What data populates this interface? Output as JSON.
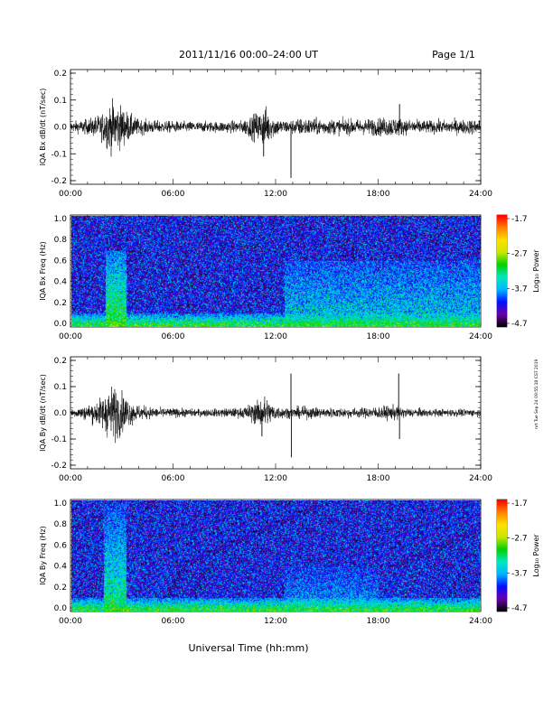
{
  "header": {
    "title": "2011/11/16  00:00–24:00 UT",
    "page": "Page 1/1"
  },
  "stamp": "nrt Tue Sep 24 09:55:18 CST 2019",
  "x_axis": {
    "title": "Universal Time (hh:mm)",
    "ticks": [
      "00:00",
      "06:00",
      "12:00",
      "18:00",
      "24:00"
    ],
    "range_hours": [
      0,
      24
    ]
  },
  "chart_data": [
    {
      "type": "line",
      "ylabel": "IQA Bx dB/dt (nT/sec)",
      "ylim": [
        -0.2,
        0.2
      ],
      "yticks": [
        "0.2",
        "0.1",
        "0.0",
        "-0.1",
        "-0.2"
      ],
      "series": [
        {
          "x_hours": [
            0,
            1,
            1.8,
            2.2,
            2.6,
            3.0,
            3.5,
            4.0,
            5.0,
            6.0,
            8.0,
            10.0,
            11.0,
            11.4,
            11.7,
            12.2,
            12.8,
            13.0,
            13.5,
            15.0,
            17.0,
            19.0,
            19.5,
            21.0,
            24.0
          ],
          "envelope_amplitude": [
            0.02,
            0.03,
            0.05,
            0.09,
            0.1,
            0.08,
            0.05,
            0.03,
            0.025,
            0.022,
            0.02,
            0.025,
            0.06,
            0.08,
            0.05,
            0.03,
            0.025,
            0.03,
            0.035,
            0.03,
            0.03,
            0.04,
            0.03,
            0.025,
            0.03
          ],
          "spikes": [
            {
              "x_hours": 12.9,
              "y": -0.19
            },
            {
              "x_hours": 19.25,
              "y": 0.085
            },
            {
              "x_hours": 11.3,
              "y": -0.11
            }
          ]
        }
      ]
    },
    {
      "type": "heatmap",
      "ylabel": "IQA Bx Freq (Hz)",
      "ylim": [
        0.0,
        1.0
      ],
      "yticks": [
        "1.0",
        "0.8",
        "0.6",
        "0.4",
        "0.2",
        "0.0"
      ],
      "colorbar": {
        "label": "Log₁₀ Power",
        "ticks": [
          "-1.7",
          "-2.7",
          "-3.7",
          "-4.7"
        ],
        "range": [
          -4.7,
          -1.7
        ],
        "colors": [
          "#000000",
          "#6a00a8",
          "#0010ff",
          "#00b4ff",
          "#00e8c0",
          "#00d000",
          "#c8e800",
          "#ffe000",
          "#ff8000",
          "#ff0000"
        ]
      },
      "features": [
        {
          "kind": "band",
          "x_hours": [
            2.0,
            3.2
          ],
          "freq_max_hz": 0.7,
          "log_power": -3.0
        },
        {
          "kind": "low_freq_enhancement",
          "x_hours": [
            0,
            24
          ],
          "freq_max_hz": 0.1,
          "log_power": -3.1
        },
        {
          "kind": "broadband_enhancement",
          "x_hours": [
            12.5,
            24
          ],
          "freq_max_hz": 0.6,
          "log_power": -3.5
        }
      ]
    },
    {
      "type": "line",
      "ylabel": "IQA By dB/dt (nT/sec)",
      "ylim": [
        -0.2,
        0.2
      ],
      "yticks": [
        "0.2",
        "0.1",
        "0.0",
        "-0.1",
        "-0.2"
      ],
      "series": [
        {
          "x_hours": [
            0,
            1,
            1.8,
            2.2,
            2.6,
            3.0,
            3.5,
            4.0,
            5.0,
            6.0,
            8.0,
            10.0,
            11.0,
            11.4,
            11.7,
            12.2,
            12.8,
            13.0,
            13.5,
            15.0,
            17.0,
            19.0,
            19.5,
            21.0,
            24.0
          ],
          "envelope_amplitude": [
            0.015,
            0.03,
            0.06,
            0.1,
            0.11,
            0.08,
            0.05,
            0.03,
            0.02,
            0.018,
            0.015,
            0.02,
            0.05,
            0.07,
            0.04,
            0.025,
            0.02,
            0.02,
            0.025,
            0.02,
            0.02,
            0.03,
            0.02,
            0.015,
            0.015
          ],
          "spikes": [
            {
              "x_hours": 12.9,
              "y": 0.15
            },
            {
              "x_hours": 12.92,
              "y": -0.17
            },
            {
              "x_hours": 19.2,
              "y": 0.15
            },
            {
              "x_hours": 19.25,
              "y": -0.1
            },
            {
              "x_hours": 11.2,
              "y": -0.09
            }
          ]
        }
      ]
    },
    {
      "type": "heatmap",
      "ylabel": "IQA By Freq (Hz)",
      "ylim": [
        0.0,
        1.0
      ],
      "yticks": [
        "1.0",
        "0.8",
        "0.6",
        "0.4",
        "0.2",
        "0.0"
      ],
      "colorbar": {
        "label": "Log₁₀ Power",
        "ticks": [
          "-1.7",
          "-2.7",
          "-3.7",
          "-4.7"
        ],
        "range": [
          -4.7,
          -1.7
        ],
        "colors": [
          "#000000",
          "#6a00a8",
          "#0010ff",
          "#00b4ff",
          "#00e8c0",
          "#00d000",
          "#c8e800",
          "#ffe000",
          "#ff8000",
          "#ff0000"
        ]
      },
      "features": [
        {
          "kind": "band",
          "x_hours": [
            1.9,
            3.2
          ],
          "freq_max_hz": 1.0,
          "log_power": -3.2
        },
        {
          "kind": "low_freq_enhancement",
          "x_hours": [
            0,
            24
          ],
          "freq_max_hz": 0.1,
          "log_power": -3.1
        },
        {
          "kind": "broadband_enhancement",
          "x_hours": [
            12.5,
            18
          ],
          "freq_max_hz": 0.4,
          "log_power": -3.7
        }
      ]
    }
  ]
}
